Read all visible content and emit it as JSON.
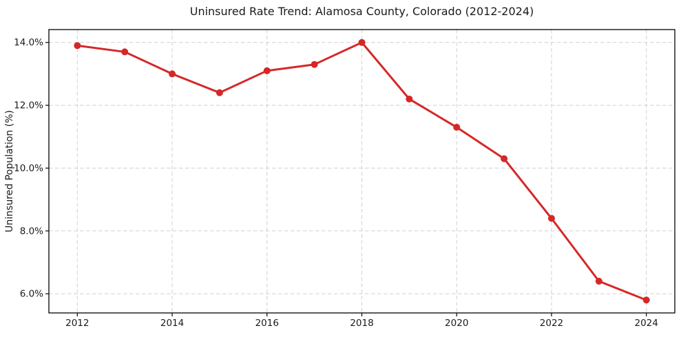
{
  "chart_data": {
    "type": "line",
    "title": "Uninsured Rate Trend: Alamosa County, Colorado (2012-2024)",
    "xlabel": "",
    "ylabel": "Uninsured Population (%)",
    "x": [
      2012,
      2013,
      2014,
      2015,
      2016,
      2017,
      2018,
      2019,
      2020,
      2021,
      2022,
      2023,
      2024
    ],
    "values": [
      13.9,
      13.7,
      13.0,
      12.4,
      13.1,
      13.3,
      14.0,
      12.2,
      11.3,
      10.3,
      8.4,
      6.4,
      5.8
    ],
    "xlim": [
      2011.4,
      2024.6
    ],
    "ylim": [
      5.39,
      14.41
    ],
    "xticks": [
      2012,
      2014,
      2016,
      2018,
      2020,
      2022,
      2024
    ],
    "xticklabels": [
      "2012",
      "2014",
      "2016",
      "2018",
      "2020",
      "2022",
      "2024"
    ],
    "yticks": [
      6,
      8,
      10,
      12,
      14
    ],
    "yticklabels": [
      "6.0%",
      "8.0%",
      "10.0%",
      "12.0%",
      "14.0%"
    ],
    "grid": true,
    "grid_linestyle": "dashed",
    "legend": false,
    "marker": "circle"
  },
  "colors": {
    "line": "#d62728",
    "grid": "#d0d0d0",
    "axis": "#000000",
    "text": "#1a1a1a",
    "background": "#ffffff"
  }
}
